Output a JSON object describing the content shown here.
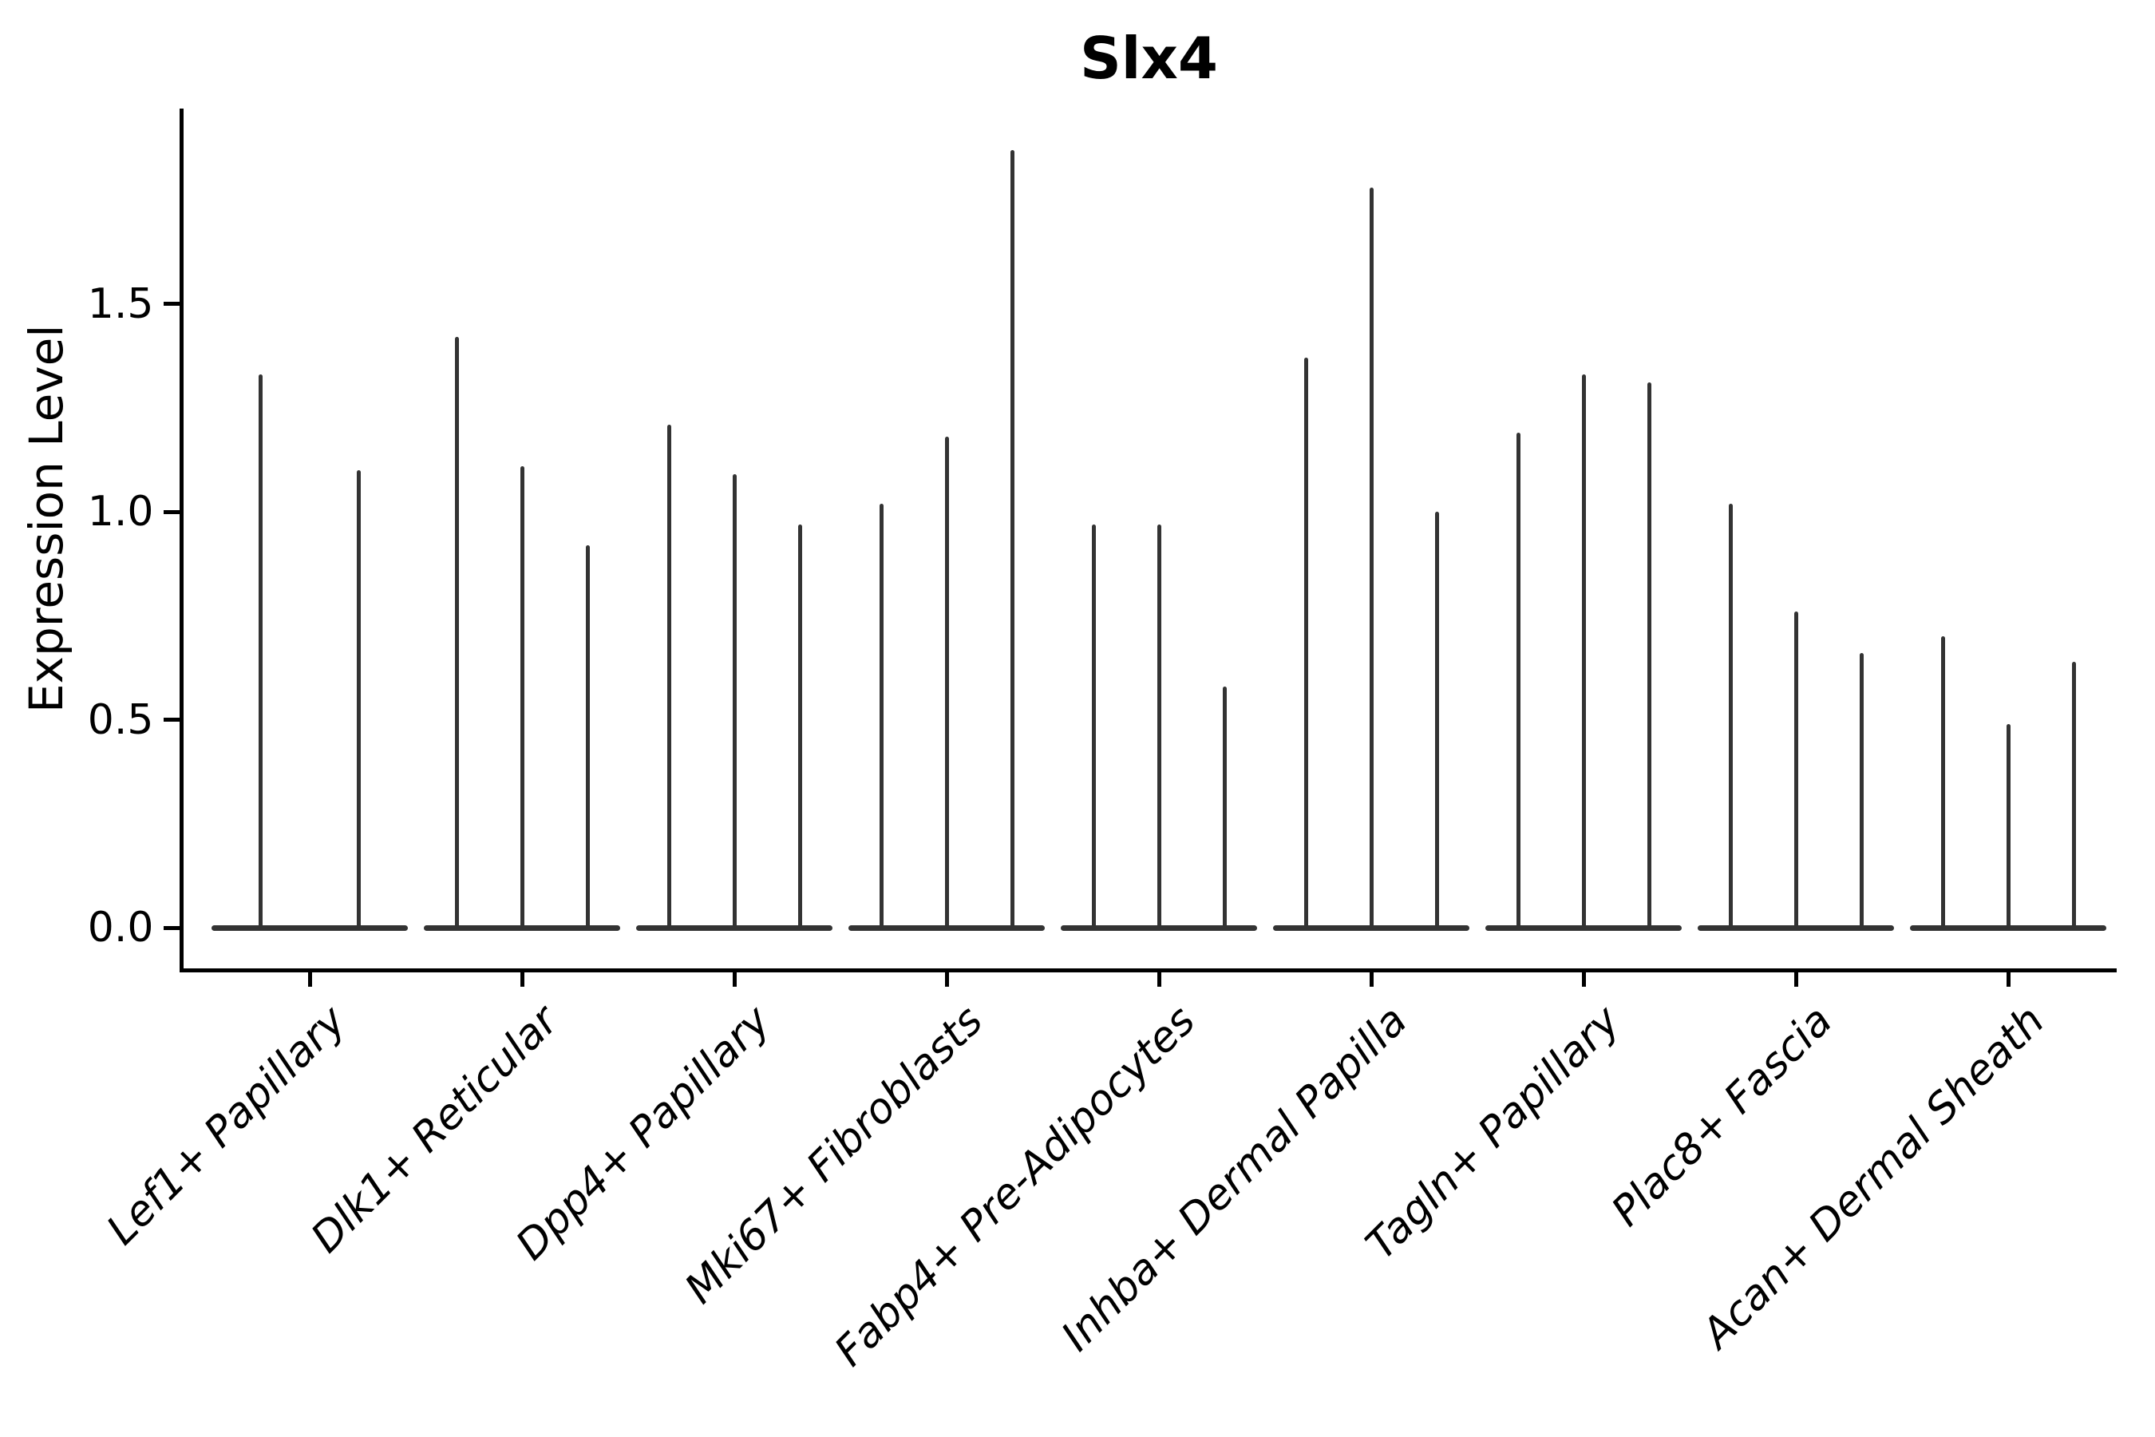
{
  "figure": {
    "title": "Slx4"
  },
  "axes": {
    "ylabel": "Expression Level",
    "ytick_labels": [
      "0.0",
      "0.5",
      "1.0",
      "1.5"
    ]
  },
  "chart_data": {
    "type": "violin",
    "title": "Slx4",
    "xlabel": "",
    "ylabel": "Expression Level",
    "description": "Needle-shaped single-cell expression violins: each violin is a flat lens at 0 with a thin spike up to its maximum expression value. Groups of 2-3 violins share each category tick.",
    "categories": [
      "Lef1+ Papillary",
      "Dlk1+ Reticular",
      "Dpp4+ Papillary",
      "Mki67+ Fibroblasts",
      "Fabp4+ Pre-Adipocytes",
      "Inhba+ Dermal Papilla",
      "Tagln+ Papillary",
      "Plac8+ Fascia",
      "Acan+ Dermal Sheath"
    ],
    "violin_max_per_category": [
      [
        1.33,
        1.1
      ],
      [
        1.42,
        1.11,
        0.92
      ],
      [
        1.21,
        1.09,
        0.97
      ],
      [
        1.02,
        1.18,
        1.87
      ],
      [
        0.97,
        0.97,
        0.58
      ],
      [
        1.37,
        1.78,
        1.0
      ],
      [
        1.19,
        1.33,
        1.31
      ],
      [
        1.02,
        0.76,
        0.66
      ],
      [
        0.7,
        0.49,
        0.64
      ]
    ],
    "violin_min": 0,
    "yticks": [
      0,
      0.5,
      1.0,
      1.5
    ],
    "ylim": [
      -0.1,
      1.96
    ],
    "grid": false,
    "legend": null,
    "style": {
      "violin_color": "#333333",
      "spine_color": "#000000",
      "background_color": "#ffffff",
      "title_bold": true,
      "xticklabel_rotation_deg": 45,
      "xticklabel_style": "italic"
    }
  }
}
